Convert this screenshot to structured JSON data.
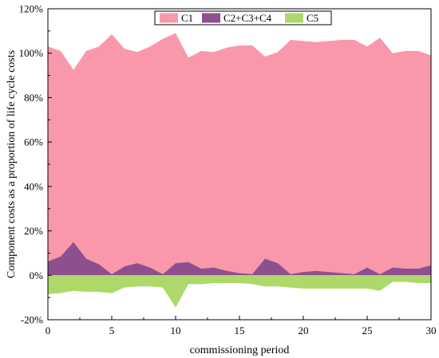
{
  "chart_data": {
    "type": "area",
    "xlabel": "commissioning period",
    "ylabel": "Component costs as a proportion of  life cycle costs",
    "xlim": [
      0,
      30
    ],
    "ylim": [
      -20,
      120
    ],
    "xticks": [
      0,
      5,
      10,
      15,
      20,
      25,
      30
    ],
    "yticks": [
      -20,
      0,
      20,
      40,
      60,
      80,
      100,
      120
    ],
    "ytick_labels": [
      "-20%",
      "0%",
      "20%",
      "40%",
      "60%",
      "80%",
      "100%",
      "120%"
    ],
    "legend_position": "top-center",
    "grid": false,
    "x": [
      0,
      1,
      2,
      3,
      4,
      5,
      6,
      7,
      8,
      9,
      10,
      11,
      12,
      13,
      14,
      15,
      16,
      17,
      18,
      19,
      20,
      21,
      22,
      23,
      24,
      25,
      26,
      27,
      28,
      29,
      30
    ],
    "series": [
      {
        "name": "C1",
        "color": "#f998aa",
        "values": [
          96.7,
          92.5,
          77.5,
          93.5,
          98,
          108,
          98,
          95,
          99.5,
          106,
          103.5,
          92,
          98,
          97,
          100.5,
          102.5,
          103,
          91,
          95,
          105.5,
          104,
          103,
          104,
          105,
          105.5,
          99.5,
          106.5,
          96.5,
          98,
          98,
          94.5
        ]
      },
      {
        "name": "C2+C3+C4",
        "color": "#8e4f8e",
        "values": [
          6.3,
          8.5,
          15,
          7.5,
          5,
          0.5,
          4,
          5.5,
          3.5,
          0.5,
          5.5,
          6,
          3,
          3.5,
          2,
          1,
          0.5,
          7.5,
          5.5,
          0.5,
          1.5,
          2,
          1.5,
          1,
          0.5,
          3.5,
          0.5,
          3.5,
          3,
          3,
          4.5
        ]
      },
      {
        "name": "C5",
        "color": "#afd86b",
        "values": [
          -8.5,
          -8,
          -7,
          -7.5,
          -7.5,
          -8,
          -5.5,
          -5,
          -5,
          -5.5,
          -14.5,
          -4,
          -4,
          -3.5,
          -3.5,
          -3.5,
          -4,
          -5,
          -5,
          -5.5,
          -6,
          -6,
          -6,
          -6,
          -6,
          -6,
          -7,
          -3,
          -3,
          -3.5,
          -3.5
        ]
      }
    ]
  }
}
